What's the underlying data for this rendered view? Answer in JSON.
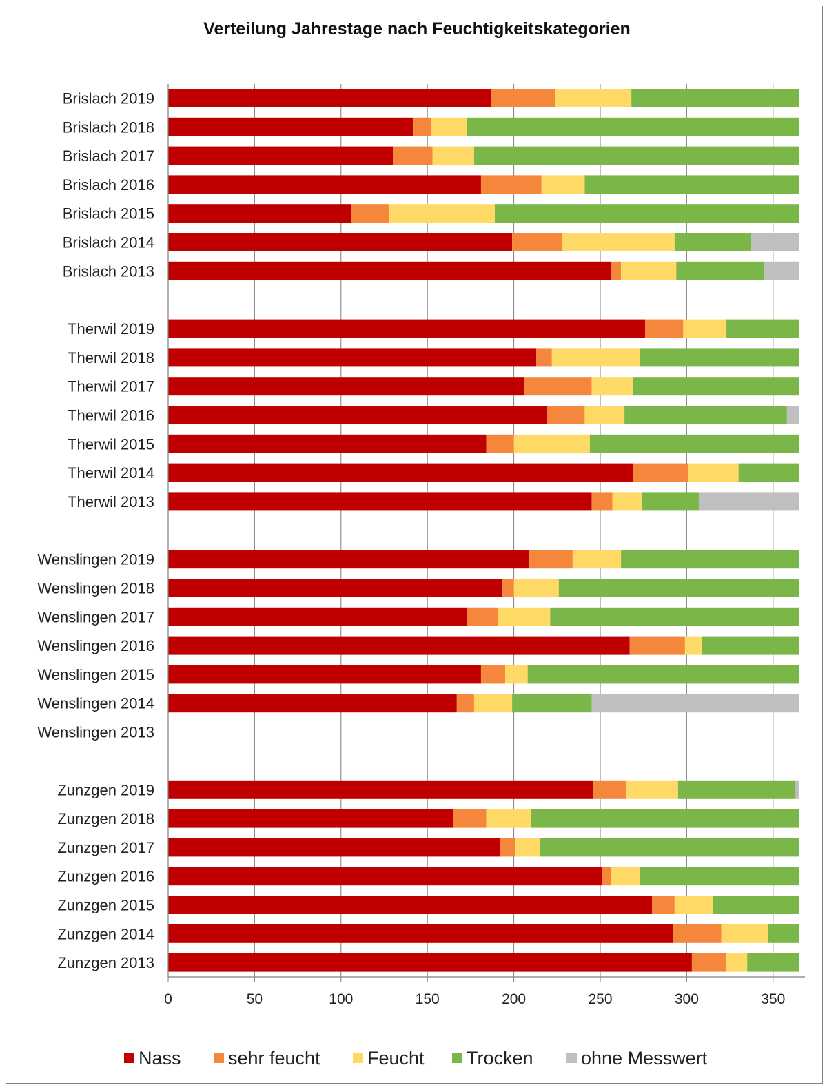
{
  "chart_data": {
    "type": "bar",
    "orientation": "horizontal",
    "stacked": true,
    "title": "Verteilung Jahrestage nach Feuchtigkeitskategorien",
    "xlabel": "",
    "ylabel": "",
    "xlim": [
      0,
      365
    ],
    "x_ticks": [
      "0",
      "50",
      "100",
      "150",
      "200",
      "250",
      "300",
      "350"
    ],
    "grid": "vertical",
    "legend_position": "bottom",
    "categories": [
      "Brislach 2019",
      "Brislach 2018",
      "Brislach 2017",
      "Brislach 2016",
      "Brislach 2015",
      "Brislach 2014",
      "Brislach 2013",
      "Therwil 2019",
      "Therwil 2018",
      "Therwil 2017",
      "Therwil 2016",
      "Therwil 2015",
      "Therwil 2014",
      "Therwil 2013",
      "Wenslingen 2019",
      "Wenslingen 2018",
      "Wenslingen 2017",
      "Wenslingen 2016",
      "Wenslingen 2015",
      "Wenslingen 2014",
      "Wenslingen 2013",
      "Zunzgen 2019",
      "Zunzgen 2018",
      "Zunzgen 2017",
      "Zunzgen 2016",
      "Zunzgen 2015",
      "Zunzgen 2014",
      "Zunzgen 2013"
    ],
    "series": [
      {
        "name": "Nass",
        "color": "#c00000",
        "values": [
          187,
          142,
          130,
          181,
          106,
          199,
          256,
          276,
          213,
          206,
          219,
          184,
          269,
          245,
          209,
          193,
          173,
          267,
          181,
          167,
          0,
          246,
          165,
          192,
          251,
          280,
          292,
          303
        ]
      },
      {
        "name": "sehr feucht",
        "color": "#f4873b",
        "values": [
          37,
          10,
          23,
          35,
          22,
          29,
          6,
          22,
          9,
          39,
          22,
          16,
          32,
          12,
          25,
          7,
          18,
          32,
          14,
          10,
          0,
          19,
          19,
          9,
          5,
          13,
          28,
          20
        ]
      },
      {
        "name": "Feucht",
        "color": "#ffd966",
        "values": [
          44,
          21,
          24,
          25,
          61,
          65,
          32,
          25,
          51,
          24,
          23,
          44,
          29,
          17,
          28,
          26,
          30,
          10,
          13,
          22,
          0,
          30,
          26,
          14,
          17,
          22,
          27,
          12
        ]
      },
      {
        "name": "Trocken",
        "color": "#7ab648",
        "values": [
          97,
          192,
          188,
          124,
          176,
          44,
          51,
          42,
          92,
          96,
          94,
          121,
          35,
          33,
          103,
          139,
          144,
          56,
          157,
          46,
          0,
          68,
          155,
          150,
          92,
          50,
          18,
          30
        ]
      },
      {
        "name": "ohne Messwert",
        "color": "#bfbfbf",
        "values": [
          0,
          0,
          0,
          0,
          0,
          28,
          20,
          0,
          0,
          0,
          7,
          0,
          0,
          58,
          0,
          0,
          0,
          0,
          0,
          120,
          0,
          2,
          0,
          0,
          0,
          0,
          0,
          0
        ]
      }
    ]
  }
}
